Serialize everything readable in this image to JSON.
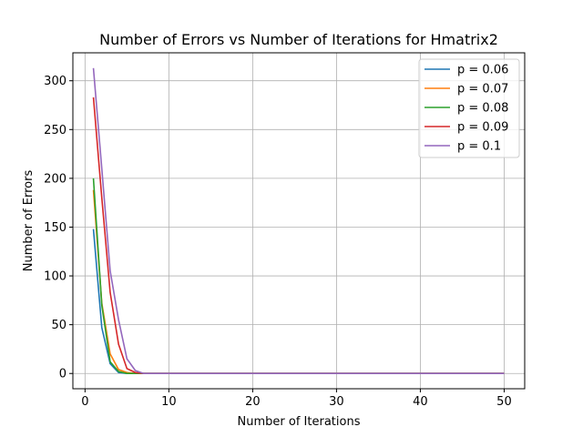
{
  "chart_data": {
    "type": "line",
    "title": "Number of Errors vs Number of Iterations for Hmatrix2",
    "xlabel": "Number of Iterations",
    "ylabel": "Number of Errors",
    "xlim": [
      -1.45,
      52.45
    ],
    "ylim": [
      -15.65,
      328.65
    ],
    "xticks": [
      0,
      10,
      20,
      30,
      40,
      50
    ],
    "yticks": [
      0,
      50,
      100,
      150,
      200,
      250,
      300
    ],
    "grid": true,
    "legend_position": "top-right",
    "x": [
      1,
      2,
      3,
      4,
      5,
      6,
      7,
      8,
      9,
      10,
      11,
      12,
      13,
      14,
      15,
      16,
      17,
      18,
      19,
      20,
      21,
      22,
      23,
      24,
      25,
      26,
      27,
      28,
      29,
      30,
      31,
      32,
      33,
      34,
      35,
      36,
      37,
      38,
      39,
      40,
      41,
      42,
      43,
      44,
      45,
      46,
      47,
      48,
      49,
      50
    ],
    "series": [
      {
        "name": "p = 0.06",
        "color": "#1f77b4",
        "values": [
          148,
          47,
          10,
          1,
          0,
          0,
          0,
          0,
          0,
          0,
          0,
          0,
          0,
          0,
          0,
          0,
          0,
          0,
          0,
          0,
          0,
          0,
          0,
          0,
          0,
          0,
          0,
          0,
          0,
          0,
          0,
          0,
          0,
          0,
          0,
          0,
          0,
          0,
          0,
          0,
          0,
          0,
          0,
          0,
          0,
          0,
          0,
          0,
          0,
          0
        ]
      },
      {
        "name": "p = 0.07",
        "color": "#ff7f0e",
        "values": [
          188,
          72,
          20,
          4,
          1,
          0,
          0,
          0,
          0,
          0,
          0,
          0,
          0,
          0,
          0,
          0,
          0,
          0,
          0,
          0,
          0,
          0,
          0,
          0,
          0,
          0,
          0,
          0,
          0,
          0,
          0,
          0,
          0,
          0,
          0,
          0,
          0,
          0,
          0,
          0,
          0,
          0,
          0,
          0,
          0,
          0,
          0,
          0,
          0,
          0
        ]
      },
      {
        "name": "p = 0.08",
        "color": "#2ca02c",
        "values": [
          200,
          70,
          12,
          2,
          0,
          0,
          0,
          0,
          0,
          0,
          0,
          0,
          0,
          0,
          0,
          0,
          0,
          0,
          0,
          0,
          0,
          0,
          0,
          0,
          0,
          0,
          0,
          0,
          0,
          0,
          0,
          0,
          0,
          0,
          0,
          0,
          0,
          0,
          0,
          0,
          0,
          0,
          0,
          0,
          0,
          0,
          0,
          0,
          0,
          0
        ]
      },
      {
        "name": "p = 0.09",
        "color": "#d62728",
        "values": [
          283,
          180,
          83,
          30,
          5,
          1,
          0,
          0,
          0,
          0,
          0,
          0,
          0,
          0,
          0,
          0,
          0,
          0,
          0,
          0,
          0,
          0,
          0,
          0,
          0,
          0,
          0,
          0,
          0,
          0,
          0,
          0,
          0,
          0,
          0,
          0,
          0,
          0,
          0,
          0,
          0,
          0,
          0,
          0,
          0,
          0,
          0,
          0,
          0,
          0
        ]
      },
      {
        "name": "p = 0.1",
        "color": "#9467bd",
        "values": [
          313,
          210,
          105,
          55,
          15,
          3,
          0,
          0,
          0,
          0,
          0,
          0,
          0,
          0,
          0,
          0,
          0,
          0,
          0,
          0,
          0,
          0,
          0,
          0,
          0,
          0,
          0,
          0,
          0,
          0,
          0,
          0,
          0,
          0,
          0,
          0,
          0,
          0,
          0,
          0,
          0,
          0,
          0,
          0,
          0,
          0,
          0,
          0,
          0,
          0
        ]
      }
    ]
  }
}
